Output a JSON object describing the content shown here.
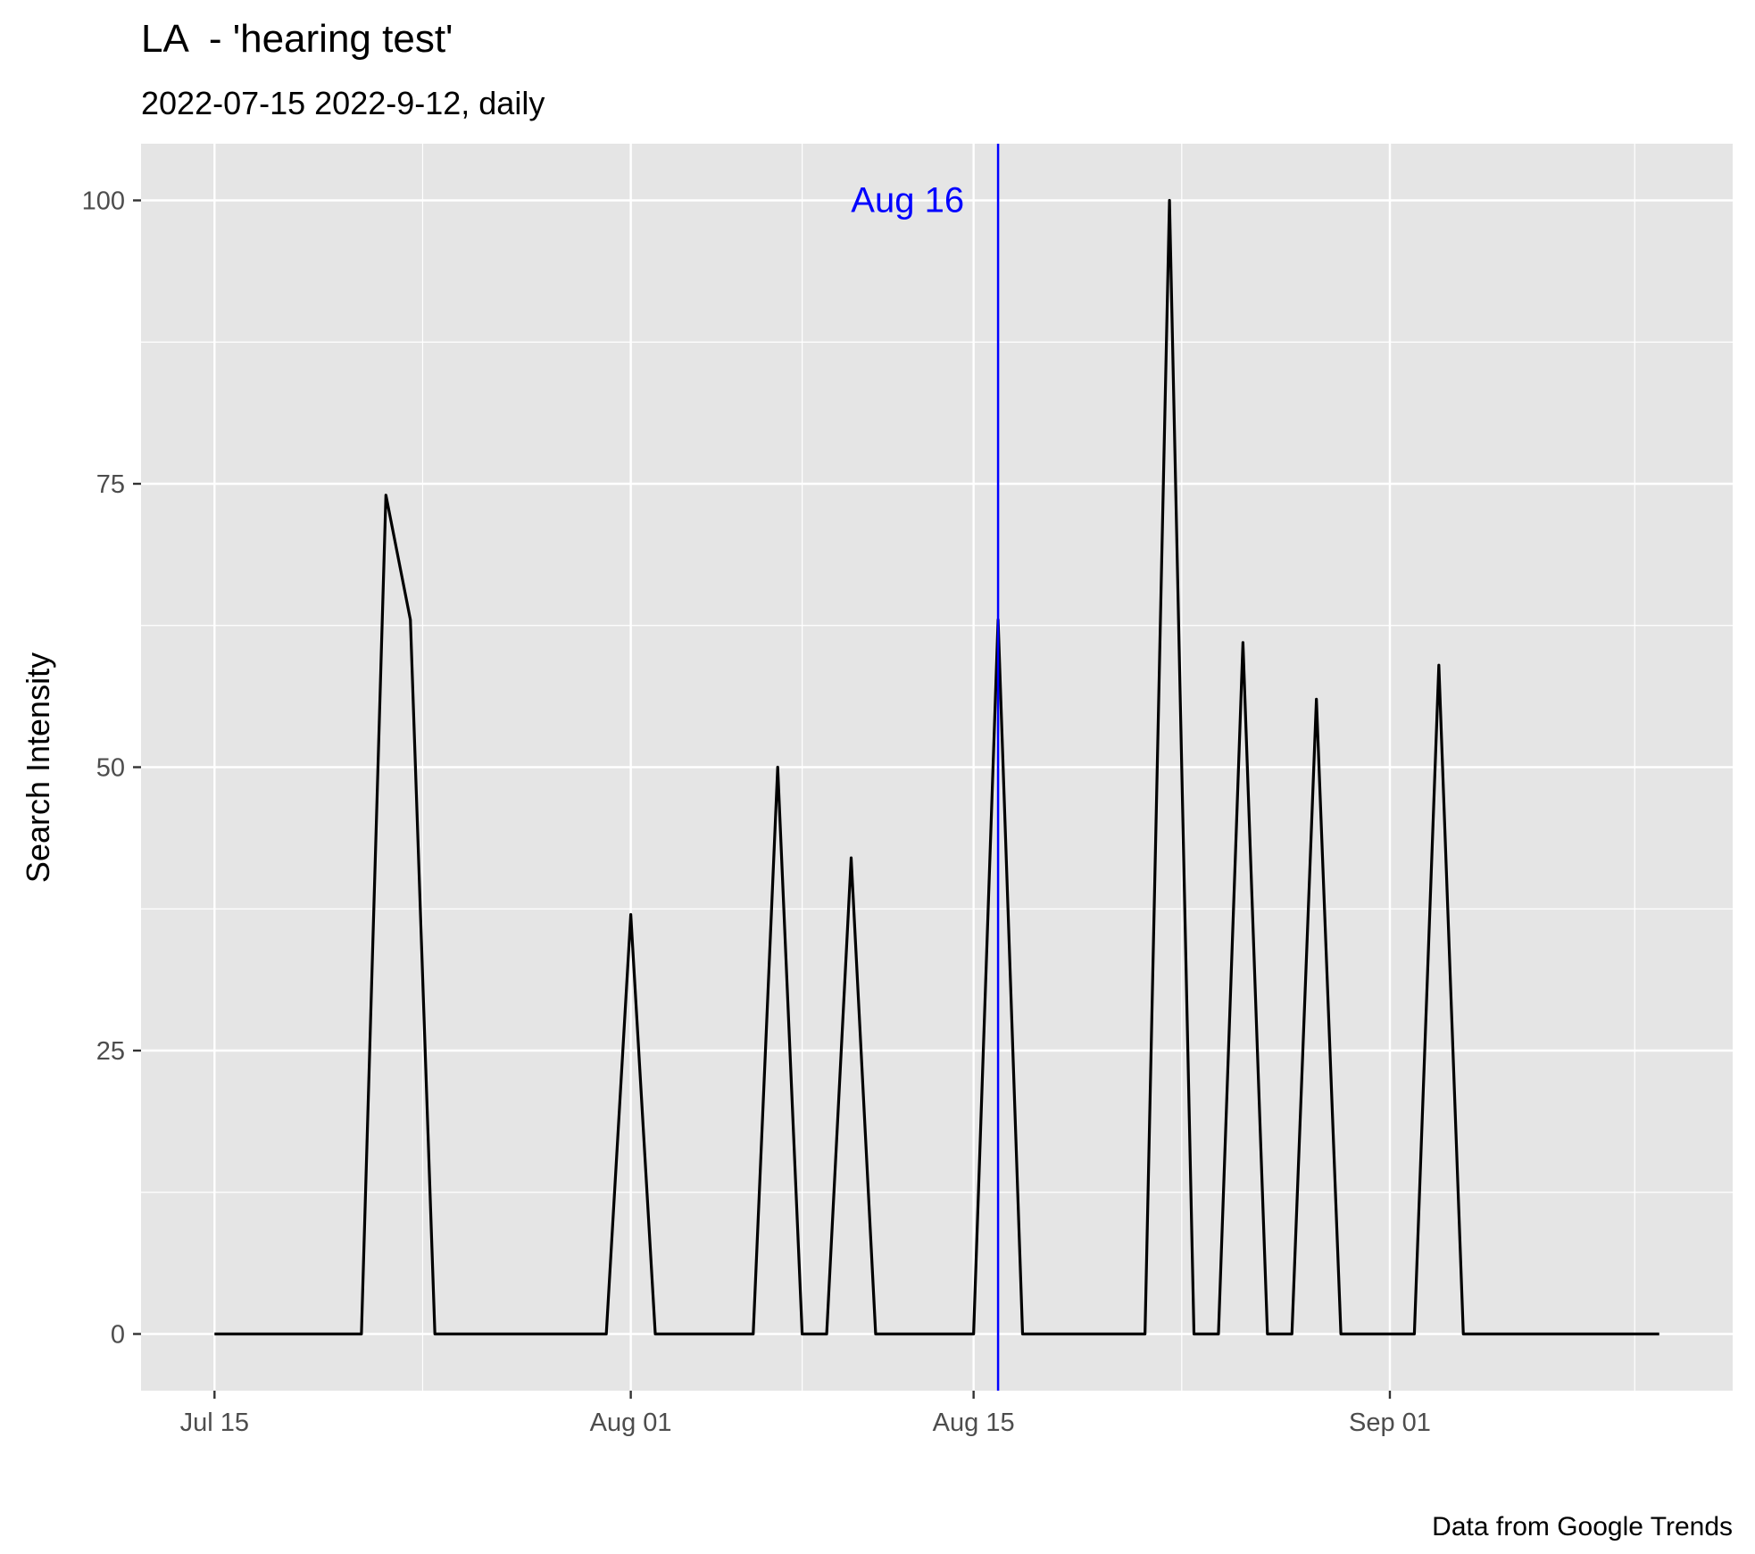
{
  "chart_data": {
    "type": "line",
    "title": "LA  - 'hearing test'",
    "subtitle": "2022-07-15 2022-9-12, daily",
    "xlabel": "",
    "ylabel": "Search Intensity",
    "caption": "Data from Google Trends",
    "x_ticks": [
      "Jul 15",
      "Aug 01",
      "Aug 15",
      "Sep 01"
    ],
    "y_ticks": [
      "0",
      "25",
      "50",
      "75",
      "100"
    ],
    "ylim": [
      -5,
      105
    ],
    "xlim": [
      "2022-07-12",
      "2022-09-15"
    ],
    "grid": true,
    "line_color": "#000000",
    "vline": {
      "x": "2022-08-16",
      "label": "Aug 16",
      "color": "#0000ff"
    },
    "series": [
      {
        "x": [
          "2022-07-15",
          "2022-07-16",
          "2022-07-17",
          "2022-07-18",
          "2022-07-19",
          "2022-07-20",
          "2022-07-21",
          "2022-07-22",
          "2022-07-23",
          "2022-07-24",
          "2022-07-25",
          "2022-07-26",
          "2022-07-27",
          "2022-07-28",
          "2022-07-29",
          "2022-07-30",
          "2022-07-31",
          "2022-08-01",
          "2022-08-02",
          "2022-08-03",
          "2022-08-04",
          "2022-08-05",
          "2022-08-06",
          "2022-08-07",
          "2022-08-08",
          "2022-08-09",
          "2022-08-10",
          "2022-08-11",
          "2022-08-12",
          "2022-08-13",
          "2022-08-14",
          "2022-08-15",
          "2022-08-16",
          "2022-08-17",
          "2022-08-18",
          "2022-08-19",
          "2022-08-20",
          "2022-08-21",
          "2022-08-22",
          "2022-08-23",
          "2022-08-24",
          "2022-08-25",
          "2022-08-26",
          "2022-08-27",
          "2022-08-28",
          "2022-08-29",
          "2022-08-30",
          "2022-08-31",
          "2022-09-01",
          "2022-09-02",
          "2022-09-03",
          "2022-09-04",
          "2022-09-05",
          "2022-09-06",
          "2022-09-07",
          "2022-09-08",
          "2022-09-09",
          "2022-09-10",
          "2022-09-11",
          "2022-09-12"
        ],
        "y": [
          0,
          0,
          0,
          0,
          0,
          0,
          0,
          74,
          63,
          0,
          0,
          0,
          0,
          0,
          0,
          0,
          0,
          37,
          0,
          0,
          0,
          0,
          0,
          50,
          0,
          0,
          42,
          0,
          0,
          0,
          0,
          0,
          63,
          0,
          0,
          0,
          0,
          0,
          0,
          100,
          0,
          0,
          61,
          0,
          0,
          56,
          0,
          0,
          0,
          0,
          59,
          0,
          0,
          0,
          0,
          0,
          0,
          0,
          0,
          0
        ]
      }
    ]
  }
}
